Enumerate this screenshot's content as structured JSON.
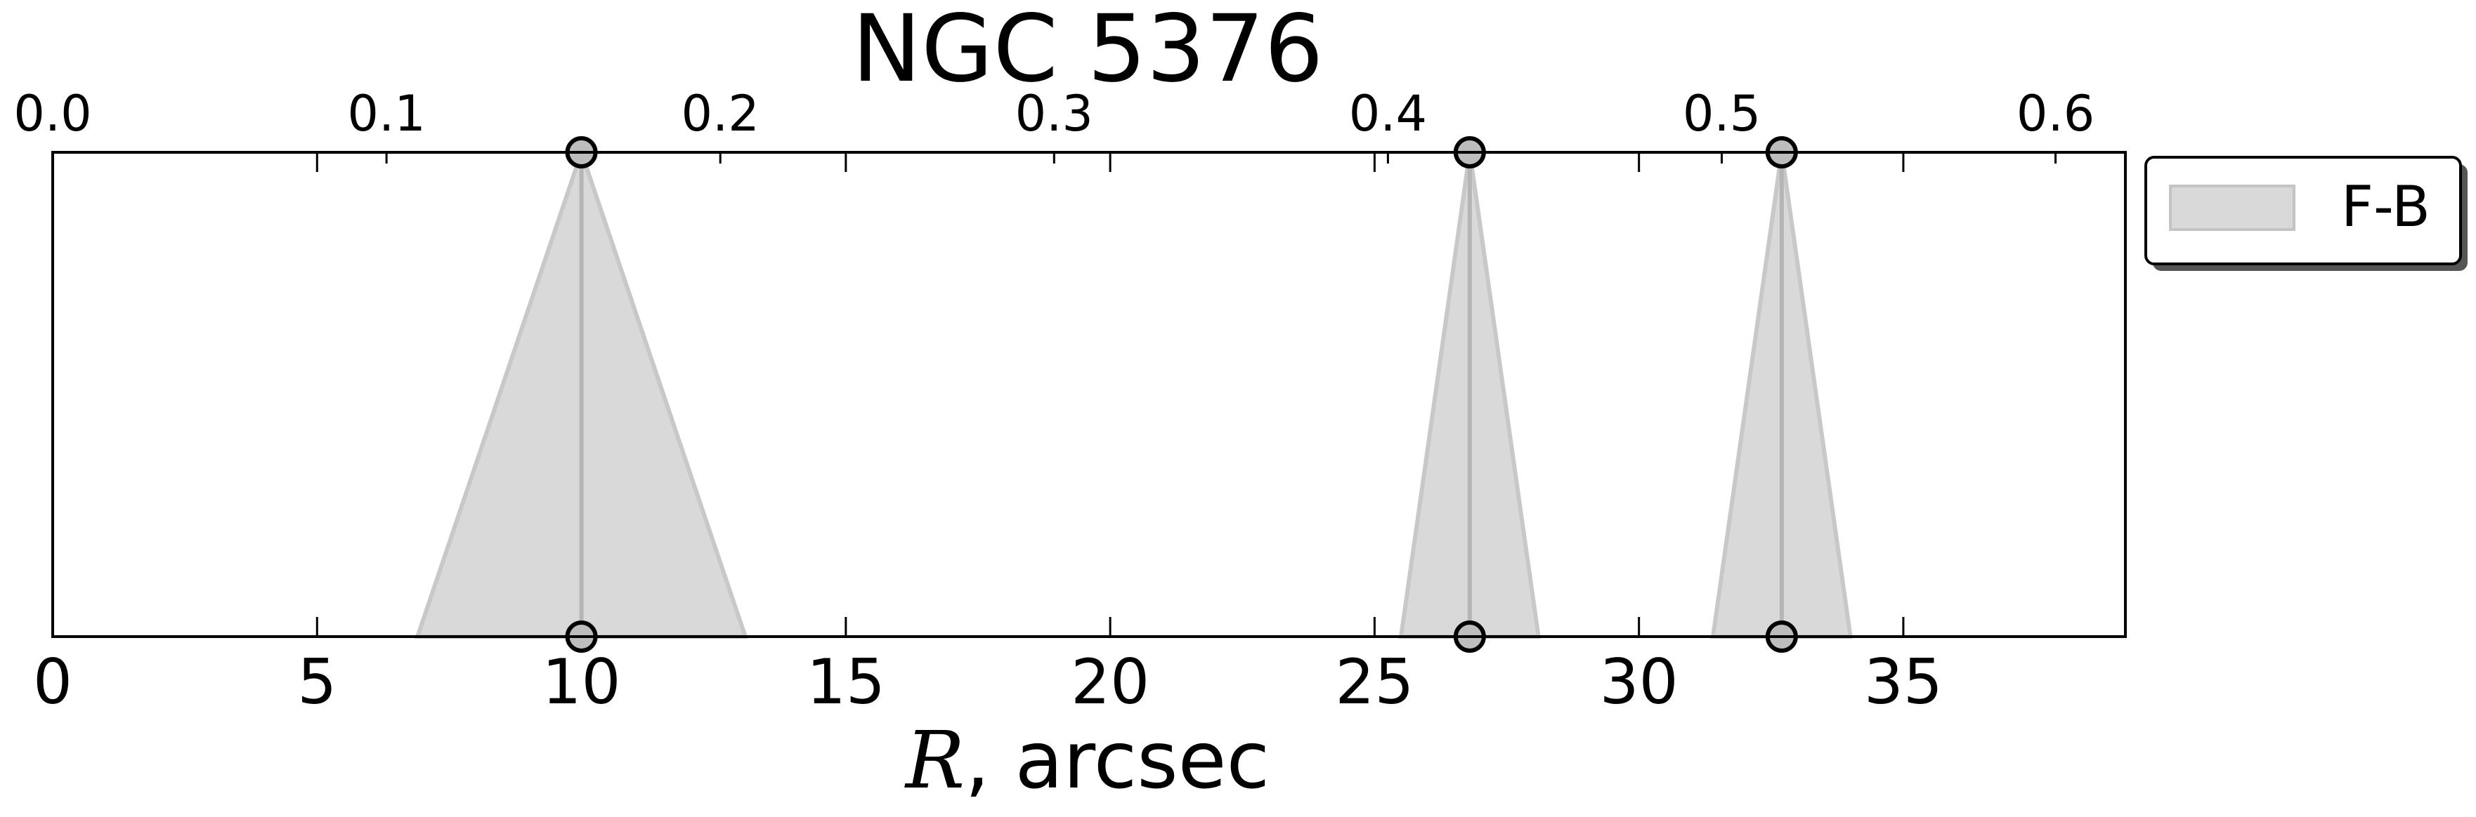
{
  "chart_data": {
    "type": "area",
    "title": "NGC 5376",
    "xlabel": "R, arcsec",
    "xlabel_symbol": "R",
    "xlabel_unit": ", arcsec",
    "xlim": [
      0,
      39.2
    ],
    "x_ticks": [
      0,
      5,
      10,
      15,
      20,
      25,
      30,
      35
    ],
    "x_tick_labels": [
      "0",
      "5",
      "10",
      "15",
      "20",
      "25",
      "30",
      "35"
    ],
    "top_axis_scale": 0.01584,
    "top_x_ticks": [
      0.0,
      0.1,
      0.2,
      0.3,
      0.4,
      0.5,
      0.6
    ],
    "top_x_tick_labels": [
      "0.0",
      "0.1",
      "0.2",
      "0.3",
      "0.4",
      "0.5",
      "0.6"
    ],
    "y_axis_visible": false,
    "grid": false,
    "legend_position": "outside right, top",
    "series": [
      {
        "name": "F-B",
        "color": "#c8c8c8",
        "features": [
          {
            "center": 10.0,
            "lower": 6.9,
            "upper": 13.1
          },
          {
            "center": 26.8,
            "lower": 25.5,
            "upper": 28.1
          },
          {
            "center": 32.7,
            "lower": 31.4,
            "upper": 34.0
          }
        ]
      }
    ]
  }
}
